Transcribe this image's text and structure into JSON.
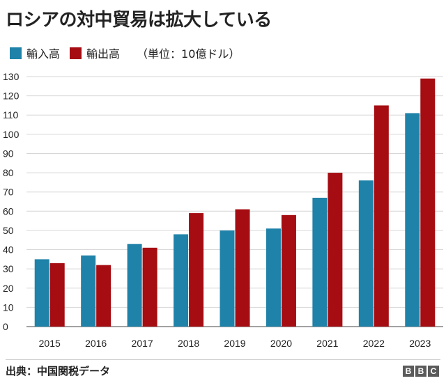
{
  "chart_data": {
    "type": "bar",
    "title": "ロシアの対中貿易は拡大している",
    "unit_label": "（単位：10億ドル）",
    "categories": [
      "2015",
      "2016",
      "2017",
      "2018",
      "2019",
      "2020",
      "2021",
      "2022",
      "2023"
    ],
    "series": [
      {
        "name": "輸入高",
        "color": "#1f82a8",
        "values": [
          35,
          37,
          43,
          48,
          50,
          51,
          67,
          76,
          111
        ]
      },
      {
        "name": "輸出高",
        "color": "#a50d12",
        "values": [
          33,
          32,
          41,
          59,
          61,
          58,
          80,
          115,
          129
        ]
      }
    ],
    "ylim": [
      0,
      130
    ],
    "yticks": [
      0,
      10,
      20,
      30,
      40,
      50,
      60,
      70,
      80,
      90,
      100,
      110,
      120,
      130
    ],
    "grid": true,
    "xlabel": "",
    "ylabel": ""
  },
  "source": "出典：中国関税データ",
  "logo": [
    "B",
    "B",
    "C"
  ]
}
